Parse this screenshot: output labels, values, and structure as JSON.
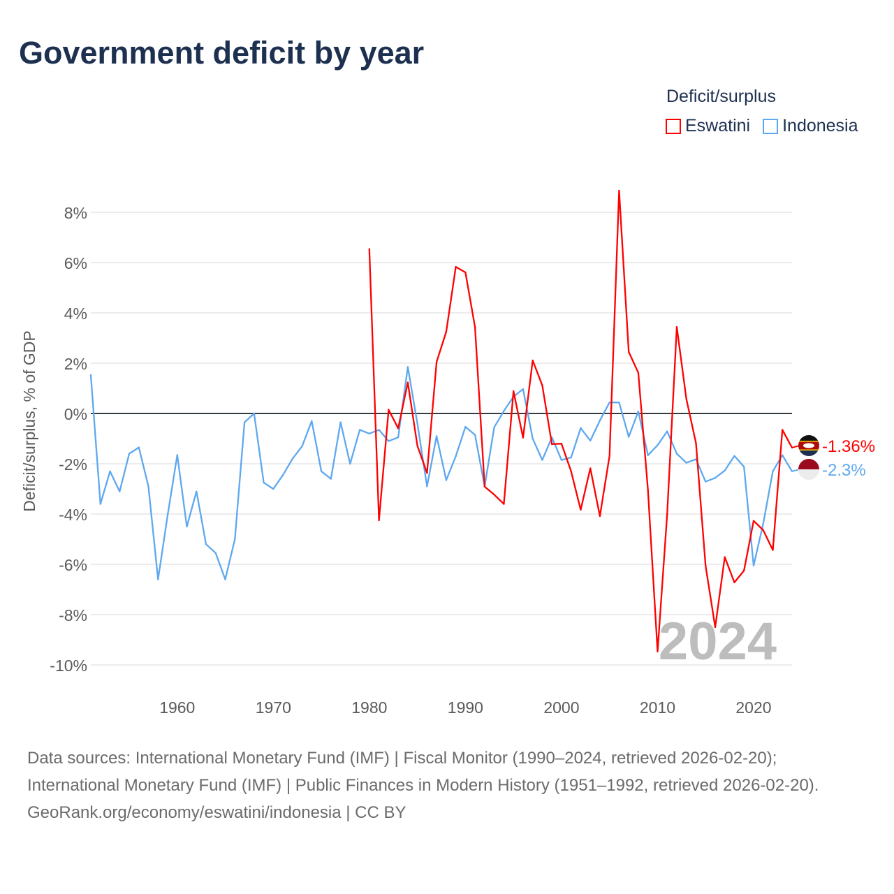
{
  "title": "Government deficit by year",
  "legend": {
    "title": "Deficit/surplus"
  },
  "footer": {
    "sources": "Data sources: International Monetary Fund (IMF) | Fiscal Monitor (1990–2024, retrieved 2026-02-20); International Monetary Fund (IMF) | Public Finances in Modern History (1951–1992, retrieved 2026-02-20).",
    "credit": "GeoRank.org/economy/eswatini/indonesia | CC BY"
  },
  "chart_data": {
    "type": "line",
    "title": "Government deficit by year",
    "xlabel": "",
    "ylabel": "Deficit/surplus, % of GDP",
    "xlim": [
      1951,
      2024
    ],
    "ylim": [
      -10,
      8
    ],
    "x_ticks": [
      1960,
      1970,
      1980,
      1990,
      2000,
      2010,
      2020
    ],
    "y_ticks": [
      -10,
      -8,
      -6,
      -4,
      -2,
      0,
      2,
      4,
      6,
      8
    ],
    "y_tick_labels": [
      "-10%",
      "-8%",
      "-6%",
      "-4%",
      "-2%",
      "0%",
      "2%",
      "4%",
      "6%",
      "8%"
    ],
    "x_tick_labels": [
      "1960",
      "1970",
      "1980",
      "1990",
      "2000",
      "2010",
      "2020"
    ],
    "grid": true,
    "legend_position": "top-right",
    "year_watermark": "2024",
    "series": [
      {
        "name": "Eswatini",
        "color": "#ff0000",
        "end_label": "-1.36%",
        "start_year": 1980,
        "values": [
          6.54,
          -4.25,
          0.15,
          -0.59,
          1.23,
          -1.28,
          -2.37,
          2.05,
          3.25,
          5.83,
          5.61,
          3.44,
          -2.91,
          -3.23,
          -3.6,
          0.89,
          -0.96,
          2.11,
          1.12,
          -1.22,
          -1.2,
          -2.3,
          -3.83,
          -2.18,
          -4.08,
          -1.69,
          8.86,
          2.45,
          1.62,
          -3.04,
          -9.47,
          -4.02,
          3.44,
          0.58,
          -1.18,
          -6.05,
          -8.5,
          -5.71,
          -6.72,
          -6.25,
          -4.27,
          -4.64,
          -5.43,
          -0.65,
          -1.36
        ]
      },
      {
        "name": "Indonesia",
        "color": "#5ea8ef",
        "end_label": "-2.3%",
        "start_year": 1951,
        "values": [
          1.53,
          -3.6,
          -2.3,
          -3.1,
          -1.6,
          -1.35,
          -2.9,
          -6.6,
          -4.05,
          -1.65,
          -4.5,
          -3.1,
          -5.2,
          -5.55,
          -6.6,
          -5.0,
          -0.35,
          0.0,
          -2.75,
          -3.0,
          -2.45,
          -1.8,
          -1.3,
          -0.3,
          -2.3,
          -2.6,
          -0.35,
          -2.0,
          -0.65,
          -0.8,
          -0.65,
          -1.1,
          -0.95,
          1.85,
          -0.4,
          -2.9,
          -0.9,
          -2.65,
          -1.7,
          -0.53,
          -0.85,
          -2.9,
          -0.55,
          0.1,
          0.67,
          0.97,
          -1.0,
          -1.85,
          -0.95,
          -1.85,
          -1.75,
          -0.58,
          -1.08,
          -0.28,
          0.44,
          0.44,
          -0.93,
          0.08,
          -1.66,
          -1.26,
          -0.71,
          -1.6,
          -1.96,
          -1.82,
          -2.71,
          -2.56,
          -2.27,
          -1.69,
          -2.12,
          -6.05,
          -4.39,
          -2.3,
          -1.66,
          -2.3
        ]
      }
    ]
  }
}
